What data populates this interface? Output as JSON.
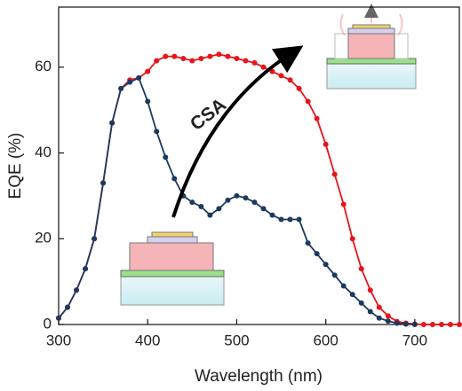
{
  "chart_data": {
    "type": "line",
    "x_label": "Wavelength (nm)",
    "y_label": "EQE (%)",
    "annotation": "CSA",
    "x": [
      300,
      310,
      320,
      330,
      340,
      350,
      360,
      370,
      380,
      390,
      400,
      410,
      420,
      430,
      440,
      450,
      460,
      470,
      480,
      490,
      500,
      510,
      520,
      530,
      540,
      550,
      560,
      570,
      580,
      590,
      600,
      610,
      620,
      630,
      640,
      650,
      660,
      670,
      680,
      690,
      700,
      710,
      720,
      730,
      740,
      750
    ],
    "series": [
      {
        "color": "#e8141c",
        "values": [
          1.5,
          4,
          8,
          13,
          20,
          33,
          47,
          55,
          57,
          57.5,
          59,
          61.5,
          62.5,
          62.5,
          62,
          61.5,
          62,
          62.5,
          63,
          62.5,
          62,
          61.5,
          61,
          60,
          59,
          58,
          57,
          55,
          52,
          48,
          42,
          35,
          28,
          20,
          13,
          8,
          4,
          2,
          0.7,
          0.3,
          0.1,
          0,
          0,
          0,
          0,
          0
        ]
      },
      {
        "color": "#1c3a5e",
        "values": [
          1.5,
          4,
          8,
          13,
          20,
          33,
          47,
          55,
          56.5,
          57.5,
          52,
          45,
          39,
          34,
          30,
          28.5,
          27.5,
          25.5,
          27,
          29,
          30,
          29.5,
          28.5,
          27,
          25.5,
          24.5,
          24.5,
          24.5,
          19,
          16.5,
          14,
          11.5,
          9,
          7,
          5,
          3,
          1.5,
          0.8,
          0.3,
          0.1,
          0,
          null,
          null,
          null,
          null,
          null
        ]
      }
    ],
    "xlim": [
      300,
      750
    ],
    "ylim": [
      0,
      74
    ],
    "xticks": [
      300,
      400,
      500,
      600,
      700
    ],
    "yticks": [
      0,
      20,
      40,
      60
    ]
  }
}
